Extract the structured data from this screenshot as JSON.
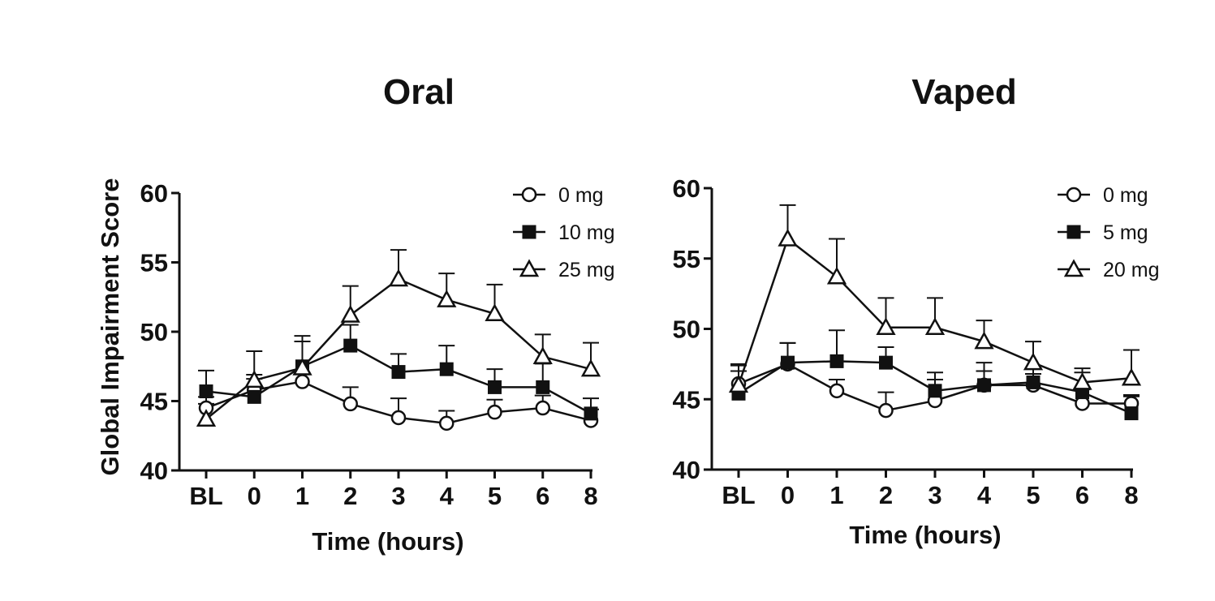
{
  "chart_data": [
    {
      "type": "line",
      "title": "Oral",
      "xlabel": "Time (hours)",
      "ylabel": "Global Impairment Score",
      "categories": [
        "BL",
        "0",
        "1",
        "2",
        "3",
        "4",
        "5",
        "6",
        "8"
      ],
      "ylim": [
        40,
        60
      ],
      "yticks": [
        40,
        45,
        50,
        55,
        60
      ],
      "legend_position": "top-right",
      "grid": false,
      "error_bars": true,
      "series": [
        {
          "name": "0 mg",
          "marker": "circle-open",
          "values": [
            44.5,
            45.8,
            46.4,
            44.8,
            43.8,
            43.4,
            44.2,
            44.5,
            43.6
          ],
          "errors": [
            0.8,
            0.8,
            0.6,
            1.2,
            1.4,
            0.9,
            0.9,
            0.9,
            0.8
          ]
        },
        {
          "name": "10 mg",
          "marker": "square-filled",
          "values": [
            45.7,
            45.3,
            47.5,
            49.0,
            47.1,
            47.3,
            46.0,
            46.0,
            44.1
          ],
          "errors": [
            1.5,
            1.6,
            2.2,
            1.5,
            1.3,
            1.7,
            1.3,
            1.7,
            1.1
          ]
        },
        {
          "name": "25 mg",
          "marker": "triangle-open",
          "values": [
            43.7,
            46.5,
            47.4,
            51.2,
            53.8,
            52.3,
            51.3,
            48.2,
            47.3
          ],
          "errors": [
            1.1,
            2.1,
            1.9,
            2.1,
            2.1,
            1.9,
            2.1,
            1.6,
            1.9
          ]
        }
      ]
    },
    {
      "type": "line",
      "title": "Vaped",
      "xlabel": "Time (hours)",
      "ylabel": "",
      "categories": [
        "BL",
        "0",
        "1",
        "2",
        "3",
        "4",
        "5",
        "6",
        "8"
      ],
      "ylim": [
        40,
        60
      ],
      "yticks": [
        40,
        45,
        50,
        55,
        60
      ],
      "legend_position": "top-right",
      "grid": false,
      "error_bars": true,
      "series": [
        {
          "name": "0 mg",
          "marker": "circle-open",
          "values": [
            46.1,
            47.5,
            45.6,
            44.2,
            44.9,
            46.0,
            46.0,
            44.7,
            44.7
          ],
          "errors": [
            0.9,
            1.5,
            0.8,
            1.3,
            1.5,
            1.0,
            0.8,
            1.0,
            0.6
          ]
        },
        {
          "name": "5 mg",
          "marker": "square-filled",
          "values": [
            45.4,
            47.6,
            47.7,
            47.6,
            45.6,
            46.0,
            46.2,
            45.5,
            44.0
          ],
          "errors": [
            2.0,
            1.4,
            2.2,
            1.1,
            1.3,
            1.6,
            1.0,
            1.4,
            1.2
          ]
        },
        {
          "name": "20 mg",
          "marker": "triangle-open",
          "values": [
            46.0,
            56.4,
            53.7,
            50.1,
            50.1,
            49.1,
            47.6,
            46.2,
            46.5
          ],
          "errors": [
            1.5,
            2.4,
            2.7,
            2.1,
            2.1,
            1.5,
            1.5,
            1.0,
            2.0
          ]
        }
      ]
    }
  ]
}
